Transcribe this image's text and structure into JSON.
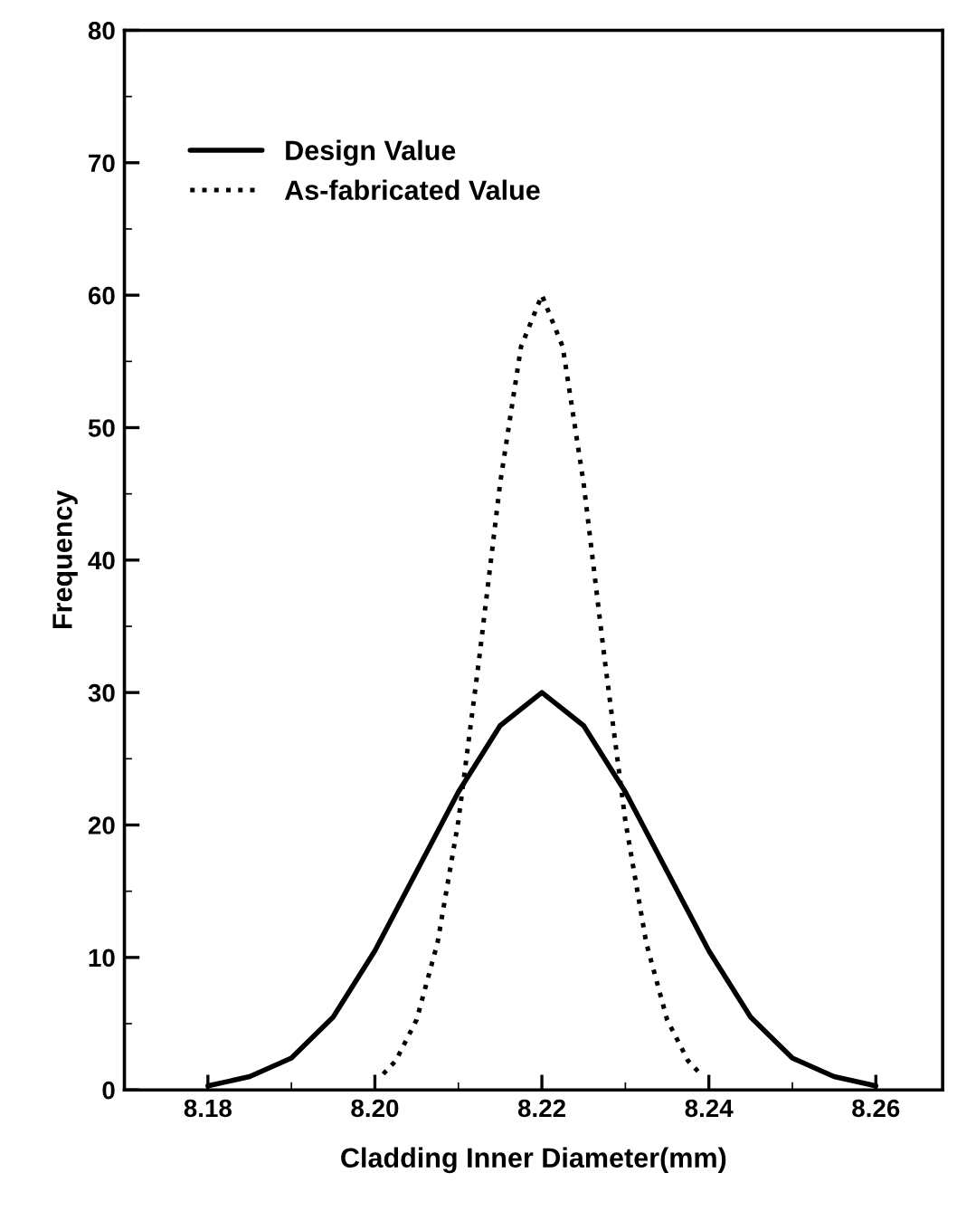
{
  "chart_data": {
    "type": "line",
    "xlabel": "Cladding Inner Diameter(mm)",
    "ylabel": "Frequency",
    "xlim": [
      8.17,
      8.268
    ],
    "xticks": [
      {
        "value": 8.18,
        "label": "8.18"
      },
      {
        "value": 8.2,
        "label": "8.20"
      },
      {
        "value": 8.22,
        "label": "8.22"
      },
      {
        "value": 8.24,
        "label": "8.24"
      },
      {
        "value": 8.26,
        "label": "8.26"
      }
    ],
    "ylim": [
      0,
      80
    ],
    "yticks": [
      0,
      10,
      20,
      30,
      40,
      50,
      60,
      70,
      80
    ],
    "grid": false,
    "legend": "top left",
    "marker": "none",
    "series": [
      {
        "name": "Design Value",
        "color": "#000000",
        "line_style": "solid",
        "x": [
          8.18,
          8.185,
          8.19,
          8.195,
          8.2,
          8.205,
          8.21,
          8.215,
          8.22,
          8.225,
          8.23,
          8.235,
          8.24,
          8.245,
          8.25,
          8.255,
          8.26
        ],
        "values": [
          0.3,
          1.0,
          2.4,
          5.5,
          10.5,
          16.5,
          22.5,
          27.5,
          30,
          27.5,
          22.5,
          16.5,
          10.5,
          5.5,
          2.4,
          1.0,
          0.3
        ]
      },
      {
        "name": "As-fabricated Value",
        "color": "#000000",
        "line_style": "dotted",
        "x": [
          8.201,
          8.2025,
          8.205,
          8.2075,
          8.21,
          8.2125,
          8.215,
          8.2175,
          8.22,
          8.2225,
          8.225,
          8.2275,
          8.23,
          8.2325,
          8.235,
          8.2375,
          8.239
        ],
        "values": [
          1.2,
          2.2,
          5.3,
          11.1,
          20.3,
          32.6,
          45.8,
          56.1,
          60,
          56.1,
          45.8,
          32.6,
          20.3,
          11.1,
          5.3,
          2.2,
          1.2
        ]
      }
    ]
  }
}
